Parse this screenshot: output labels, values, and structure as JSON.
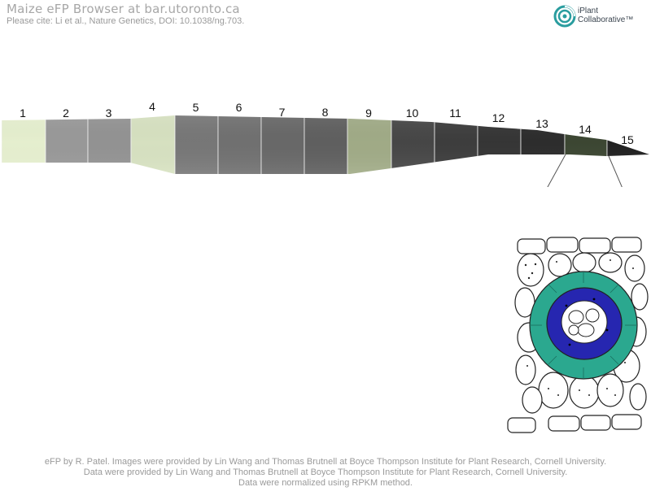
{
  "header": {
    "title": "Maize eFP Browser at bar.utoronto.ca",
    "citation": "Please cite: Li et al., Nature Genetics, DOI: 10.1038/ng.703."
  },
  "logo": {
    "line1": "iPlant",
    "line2": "Collaborative™",
    "color": "#2a9d9f"
  },
  "leaf_segments": [
    {
      "label": "1",
      "color": "#f1fbd9"
    },
    {
      "label": "2",
      "color": "#a0a0a0"
    },
    {
      "label": "3",
      "color": "#9a9a9a"
    },
    {
      "label": "4",
      "color": "#e1ecca"
    },
    {
      "label": "5",
      "color": "#7d7d7d"
    },
    {
      "label": "6",
      "color": "#767676"
    },
    {
      "label": "7",
      "color": "#6d6d6d"
    },
    {
      "label": "8",
      "color": "#646464"
    },
    {
      "label": "9",
      "color": "#a8b38d"
    },
    {
      "label": "10",
      "color": "#4a4a4a"
    },
    {
      "label": "11",
      "color": "#404040"
    },
    {
      "label": "12",
      "color": "#383838"
    },
    {
      "label": "13",
      "color": "#2f2f2f"
    },
    {
      "label": "14",
      "color": "#3f4a35"
    },
    {
      "label": "15",
      "color": "#232323"
    }
  ],
  "cross_section": {
    "outer_color": "#2ba88f",
    "inner_color": "#2626b0",
    "cell_color": "#ffffff",
    "outline_color": "#222222"
  },
  "footer": {
    "line1": "eFP by R. Patel. Images were provided by Lin Wang and Thomas Brutnell at Boyce Thompson Institute for Plant Research, Cornell University.",
    "line2": "Data were provided by Lin Wang and Thomas Brutnell at Boyce Thompson Institute for Plant Research, Cornell University.",
    "line3": "Data were normalized using RPKM method."
  }
}
